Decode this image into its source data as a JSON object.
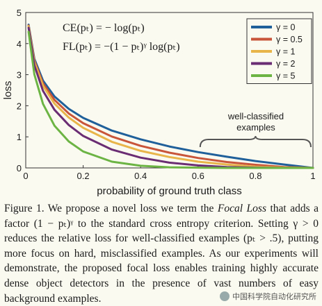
{
  "chart_data": {
    "type": "line",
    "xlabel": "probability of ground truth class",
    "ylabel": "loss",
    "xlim": [
      0,
      1
    ],
    "ylim": [
      0,
      5
    ],
    "xticks": [
      "0",
      "0.2",
      "0.4",
      "0.6",
      "0.8",
      "1"
    ],
    "yticks": [
      "0",
      "1",
      "2",
      "3",
      "4",
      "5"
    ],
    "grid": false,
    "legend_position": "top-right",
    "x": [
      0.01,
      0.03,
      0.06,
      0.1,
      0.15,
      0.2,
      0.3,
      0.4,
      0.5,
      0.6,
      0.7,
      0.8,
      0.9,
      1.0
    ],
    "series": [
      {
        "name": "γ = 0",
        "color": "#1f5f9a",
        "values": [
          4.61,
          3.51,
          2.81,
          2.3,
          1.9,
          1.61,
          1.2,
          0.92,
          0.69,
          0.51,
          0.36,
          0.22,
          0.11,
          0.0
        ]
      },
      {
        "name": "γ = 0.5",
        "color": "#c8553a",
        "values": [
          4.58,
          3.45,
          2.72,
          2.19,
          1.75,
          1.44,
          1.01,
          0.71,
          0.49,
          0.32,
          0.19,
          0.1,
          0.03,
          0.0
        ]
      },
      {
        "name": "γ = 1",
        "color": "#e8b54a",
        "values": [
          4.56,
          3.4,
          2.64,
          2.07,
          1.62,
          1.29,
          0.84,
          0.55,
          0.35,
          0.2,
          0.11,
          0.04,
          0.01,
          0.0
        ]
      },
      {
        "name": "γ = 2",
        "color": "#6a2c73",
        "values": [
          4.51,
          3.3,
          2.48,
          1.87,
          1.38,
          1.03,
          0.59,
          0.33,
          0.17,
          0.08,
          0.03,
          0.01,
          0.0,
          0.0
        ]
      },
      {
        "name": "γ = 5",
        "color": "#6cb444",
        "values": [
          4.38,
          3.01,
          2.06,
          1.36,
          0.85,
          0.53,
          0.2,
          0.07,
          0.02,
          0.01,
          0.0,
          0.0,
          0.0,
          0.0
        ]
      }
    ],
    "annotations": {
      "ce_formula": "CE(pₜ) = − log(pₜ)",
      "fl_formula": "FL(pₜ) = −(1 − pₜ)ᵞ log(pₜ)",
      "callout_line1": "well-classified",
      "callout_line2": "examples",
      "callout_x_range": [
        0.6,
        1.0
      ]
    }
  },
  "caption": {
    "p1a": "Figure 1. We propose a novel loss we term the ",
    "p1_italic": "Focal Loss",
    "p1b": " that adds a factor (1 − pₜ)ᵞ to the standard cross entropy criterion. Setting γ > 0 reduces the relative loss for well-classified examples (pₜ > .5), putting more focus on hard, misclassified examples. As our experiments will demonstrate, the proposed focal loss enables training highly accurate dense object detectors in the presence of vast numbers of easy background examples."
  },
  "watermark": {
    "text": "中国科学院自动化研究所"
  }
}
